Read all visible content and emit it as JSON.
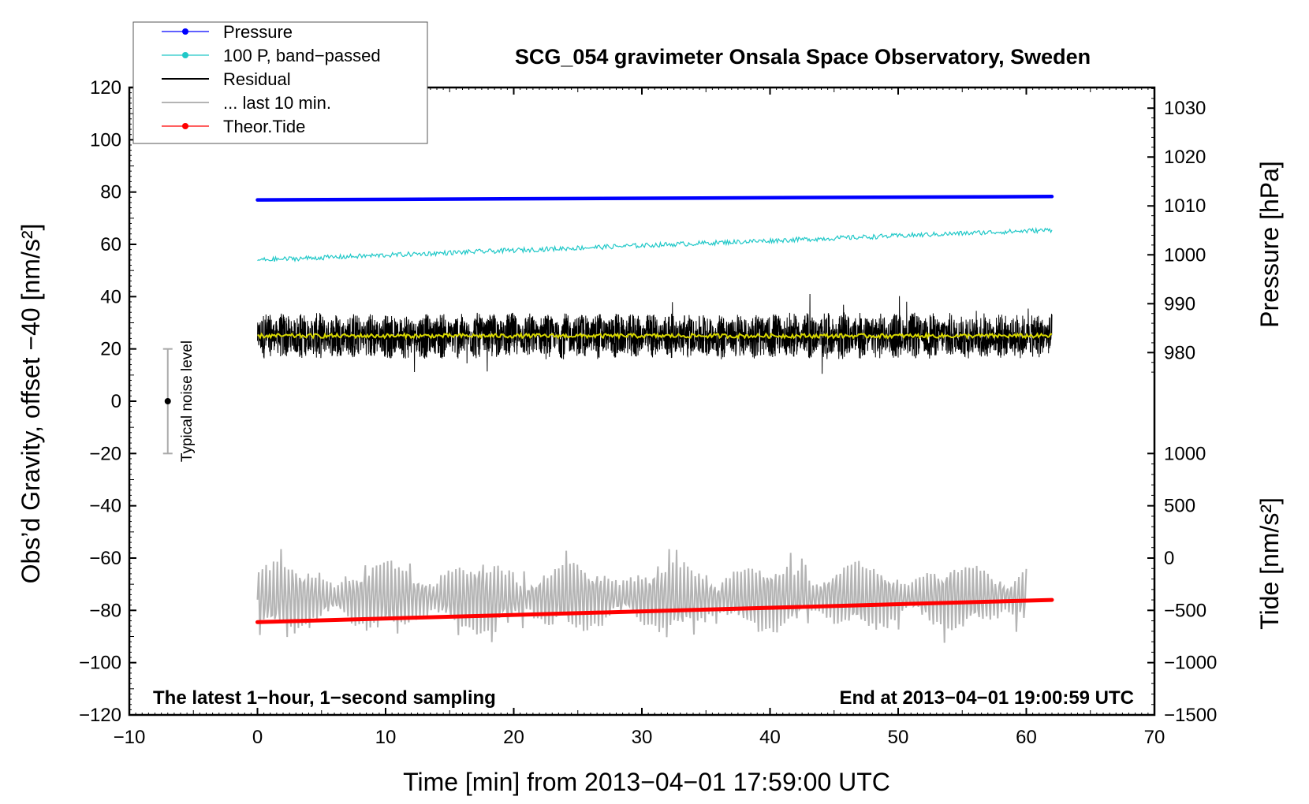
{
  "chart_data": {
    "type": "line",
    "title": "SCG_054 gravimeter Onsala Space Observatory, Sweden",
    "xlabel": "Time [min] from 2013−04−01 17:59:00 UTC",
    "ylabel_left": "Obs’d Gravity, offset −40 [nm/s²]",
    "ylabel_right_top": "Pressure [hPa]",
    "ylabel_right_bottom": "Tide [nm/s²]",
    "xlim": [
      -10,
      70
    ],
    "ylim": [
      -120,
      120
    ],
    "x_ticks": [
      -10,
      0,
      10,
      20,
      30,
      40,
      50,
      60,
      70
    ],
    "x_tick_labels": [
      "−10",
      "0",
      "10",
      "20",
      "30",
      "40",
      "50",
      "60",
      "70"
    ],
    "y_ticks": [
      -120,
      -100,
      -80,
      -60,
      -40,
      -20,
      0,
      20,
      40,
      60,
      80,
      100,
      120
    ],
    "y_tick_labels": [
      "−120",
      "−100",
      "−80",
      "−60",
      "−40",
      "−20",
      "0",
      "20",
      "40",
      "60",
      "80",
      "100",
      "120"
    ],
    "pressure_axis": {
      "ticks": [
        980,
        990,
        1000,
        1010,
        1020,
        1030
      ],
      "labels": [
        "980",
        "990",
        "1000",
        "1010",
        "1020",
        "1030"
      ],
      "gravity_at_1000": 56,
      "gravity_per_hpa": 1.87
    },
    "tide_axis": {
      "ticks": [
        -1500,
        -1000,
        -500,
        0,
        500,
        1000
      ],
      "labels": [
        "−1500",
        "−1000",
        "−500",
        "0",
        "500",
        "1000"
      ],
      "gravity_at_0": -60,
      "gravity_per_unit": 0.04
    },
    "notes": {
      "left": "The latest 1−hour, 1−second sampling",
      "right": "End at 2013−04−01 19:00:59 UTC"
    },
    "noise_bar": {
      "label": "Typical noise level",
      "x": -7,
      "center": 0,
      "low": -20,
      "high": 20
    },
    "legend": [
      {
        "name": "Pressure",
        "color": "#0000ff",
        "marker": true
      },
      {
        "name": "100 P, band−passed",
        "color": "#20c8c8",
        "marker": true
      },
      {
        "name": "Residual",
        "color": "#000000",
        "marker": false
      },
      {
        "name": "... last 10 min.",
        "color": "#b4b4b4",
        "marker": false
      },
      {
        "name": "Theor.Tide",
        "color": "#ff0000",
        "marker": true
      }
    ],
    "series": [
      {
        "name": "Pressure",
        "color": "#0000ff",
        "x_range": [
          0,
          62
        ],
        "start": 77,
        "end": 78.3
      },
      {
        "name": "100 P, band−passed",
        "color": "#20c8c8",
        "x_range": [
          0,
          62
        ],
        "start": 54,
        "end": 65.5
      },
      {
        "name": "Residual",
        "color": "#000000",
        "x_range": [
          0,
          62
        ],
        "mean": 25,
        "min": 3,
        "max": 49
      },
      {
        "name": "Residual (smoothed)",
        "color": "#d8d800",
        "x_range": [
          0,
          62
        ],
        "mean": 25
      },
      {
        "name": "... last 10 min.",
        "color": "#b4b4b4",
        "x_range": [
          0,
          60
        ],
        "mean": -75,
        "min": -93,
        "max": -53
      },
      {
        "name": "Theor.Tide",
        "color": "#ff0000",
        "x_range": [
          0,
          62
        ],
        "start": -84.5,
        "end": -76
      }
    ]
  }
}
